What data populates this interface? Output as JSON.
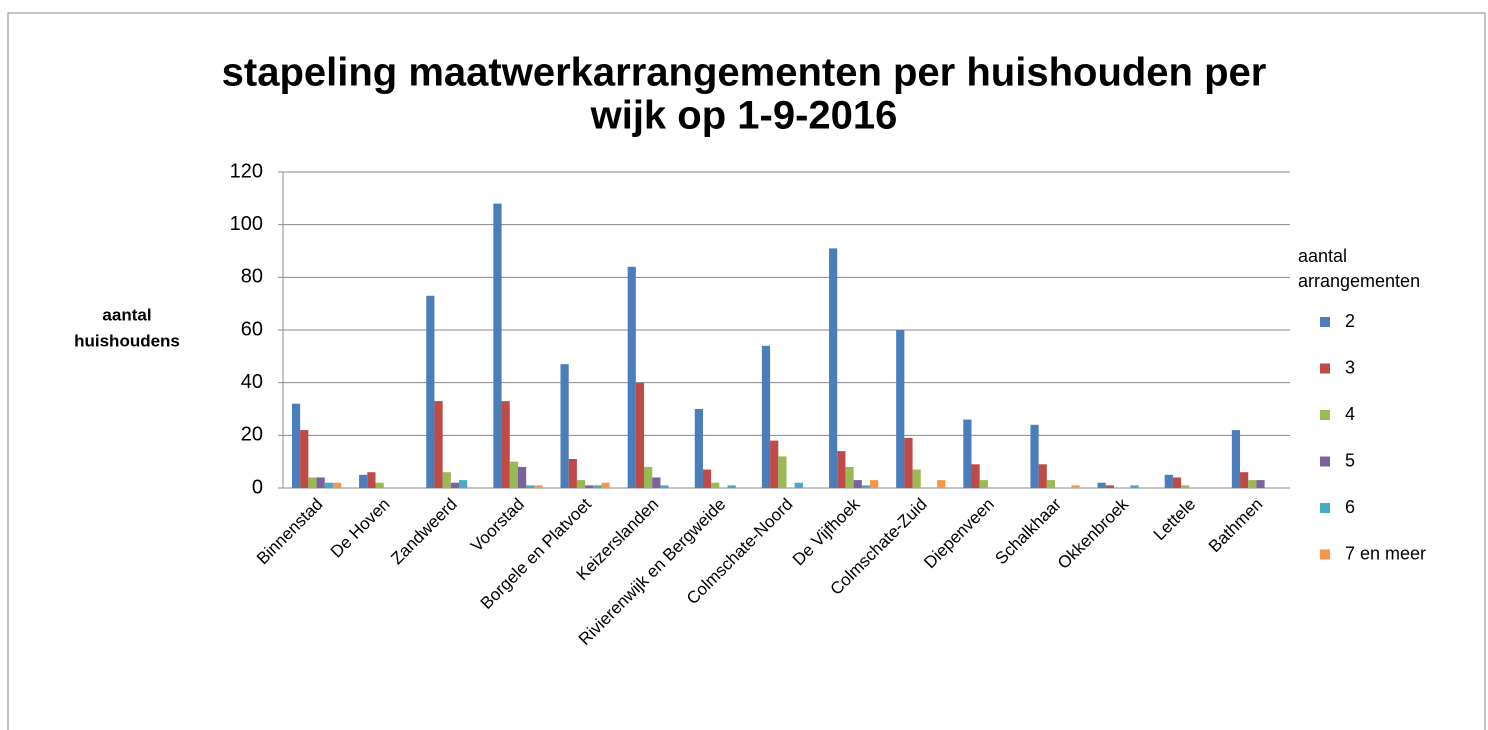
{
  "chart_data": {
    "type": "bar",
    "title": [
      "stapeling maatwerkarrangementen per huishouden per",
      "wijk op 1-9-2016"
    ],
    "y_label": [
      "aantal",
      "huishoudens"
    ],
    "legend_title": [
      "aantal",
      "arrangementen"
    ],
    "categories": [
      "Binnenstad",
      "De Hoven",
      "Zandweerd",
      "Voorstad",
      "Borgele en Platvoet",
      "Keizerslanden",
      "Rivierenwijk en Bergweide",
      "Colmschate-Noord",
      "De Vijfhoek",
      "Colmschate-Zuid",
      "Diepenveen",
      "Schalkhaar",
      "Okkenbroek",
      "Lettele",
      "Bathmen"
    ],
    "series": [
      {
        "name": "2",
        "color": "#4a7ebb",
        "values": [
          32,
          5,
          73,
          108,
          47,
          84,
          30,
          54,
          91,
          60,
          26,
          24,
          2,
          5,
          22
        ]
      },
      {
        "name": "3",
        "color": "#be4b48",
        "values": [
          22,
          6,
          33,
          33,
          11,
          40,
          7,
          18,
          14,
          19,
          9,
          9,
          1,
          4,
          6
        ]
      },
      {
        "name": "4",
        "color": "#98b954",
        "values": [
          4,
          2,
          6,
          10,
          3,
          8,
          2,
          12,
          8,
          7,
          3,
          3,
          0,
          1,
          3
        ]
      },
      {
        "name": "5",
        "color": "#7d60a0",
        "values": [
          4,
          0,
          2,
          8,
          1,
          4,
          0,
          0,
          3,
          0,
          0,
          0,
          0,
          0,
          3
        ]
      },
      {
        "name": "6",
        "color": "#46aac5",
        "values": [
          2,
          0,
          3,
          1,
          1,
          1,
          1,
          2,
          1,
          0,
          0,
          0,
          1,
          0,
          0
        ]
      },
      {
        "name": "7 en meer",
        "color": "#f79646",
        "values": [
          2,
          0,
          0,
          1,
          2,
          0,
          0,
          0,
          3,
          3,
          0,
          1,
          0,
          0,
          0
        ]
      }
    ],
    "ylim": [
      0,
      120
    ],
    "yticks": [
      0,
      20,
      40,
      60,
      80,
      100,
      120
    ],
    "grid": true,
    "legend_position": "right"
  }
}
